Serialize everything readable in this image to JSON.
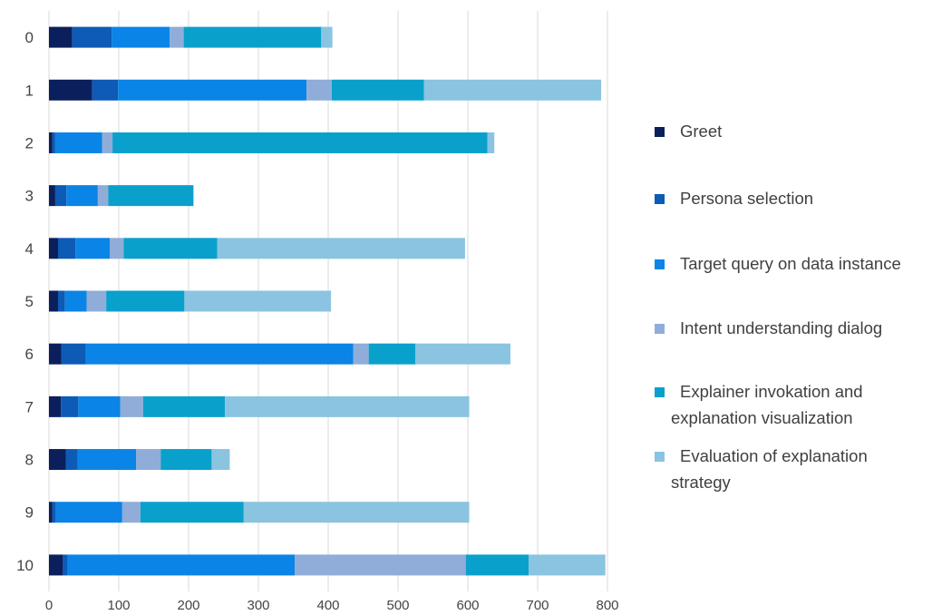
{
  "chart_data": {
    "type": "bar",
    "orientation": "horizontal",
    "stacked": true,
    "title": "",
    "xlabel": "",
    "ylabel": "",
    "xlim": [
      0,
      800
    ],
    "x_ticks": [
      0,
      100,
      200,
      300,
      400,
      500,
      600,
      700,
      800
    ],
    "grid": "vertical",
    "legend_position": "right",
    "categories": [
      "0",
      "1",
      "2",
      "3",
      "4",
      "5",
      "6",
      "7",
      "8",
      "9",
      "10"
    ],
    "series": [
      {
        "name": "Greet",
        "color": "#0b1f5c",
        "values": [
          33,
          62,
          5,
          9,
          13,
          13,
          18,
          17,
          24,
          5,
          20
        ]
      },
      {
        "name": "Persona selection",
        "color": "#0d5bb5",
        "values": [
          57,
          37,
          4,
          16,
          25,
          10,
          35,
          25,
          17,
          5,
          7
        ]
      },
      {
        "name": "Target query on data instance",
        "color": "#0a84e6",
        "values": [
          83,
          270,
          67,
          45,
          49,
          31,
          383,
          60,
          84,
          95,
          325
        ]
      },
      {
        "name": "Intent understanding dialog",
        "color": "#8fadd8",
        "values": [
          20,
          36,
          15,
          15,
          20,
          28,
          22,
          33,
          35,
          26,
          245
        ]
      },
      {
        "name": "Explainer invokation and explanation visualization",
        "color": "#0aa0cc",
        "values": [
          197,
          132,
          537,
          122,
          134,
          112,
          67,
          117,
          73,
          148,
          90
        ]
      },
      {
        "name": "Evaluation of explanation strategy",
        "color": "#8ac4e0",
        "values": [
          16,
          254,
          10,
          0,
          355,
          210,
          136,
          350,
          26,
          323,
          110
        ]
      }
    ]
  },
  "legend": [
    {
      "lines": [
        "Greet"
      ]
    },
    {
      "lines": [
        "Persona selection"
      ]
    },
    {
      "lines": [
        "Target query on data instance"
      ]
    },
    {
      "lines": [
        "Intent understanding dialog"
      ]
    },
    {
      "lines": [
        "Explainer invokation and",
        "explanation visualization"
      ]
    },
    {
      "lines": [
        "Evaluation of explanation",
        "strategy"
      ]
    }
  ]
}
